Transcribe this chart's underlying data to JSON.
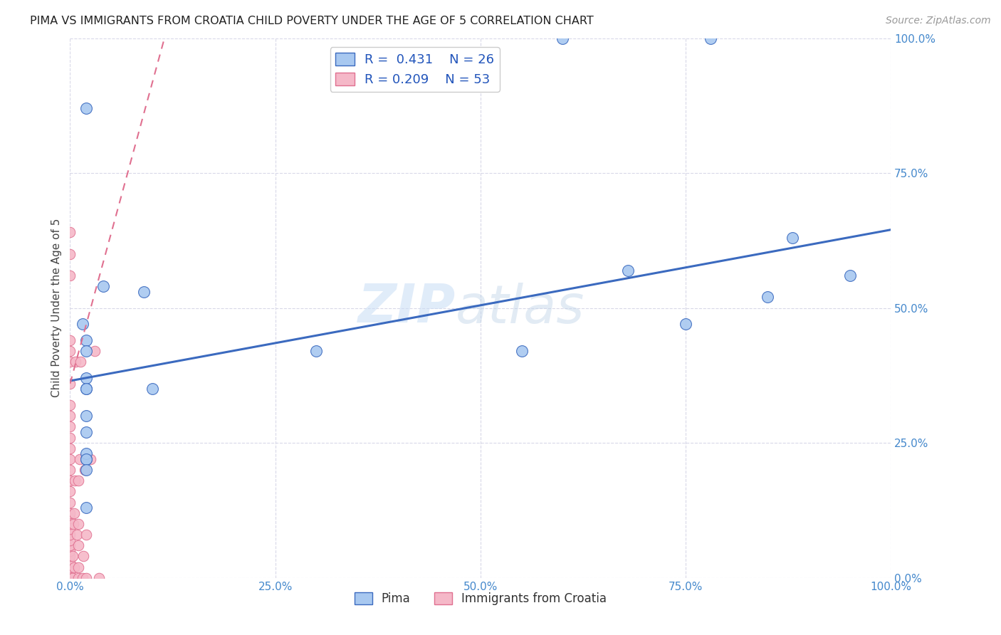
{
  "title": "PIMA VS IMMIGRANTS FROM CROATIA CHILD POVERTY UNDER THE AGE OF 5 CORRELATION CHART",
  "source": "Source: ZipAtlas.com",
  "ylabel": "Child Poverty Under the Age of 5",
  "xlim": [
    0,
    1.0
  ],
  "ylim": [
    0,
    1.0
  ],
  "pima_R": 0.431,
  "pima_N": 26,
  "croatia_R": 0.209,
  "croatia_N": 53,
  "pima_color": "#a8c8f0",
  "croatia_color": "#f5b8c8",
  "pima_line_color": "#3b6abf",
  "croatia_line_color": "#e07090",
  "watermark_zip": "ZIP",
  "watermark_atlas": "atlas",
  "pima_x": [
    0.02,
    0.02,
    0.04,
    0.015,
    0.02,
    0.09,
    0.55,
    0.02,
    0.1,
    0.78,
    0.6,
    0.95,
    0.75,
    0.88,
    0.85,
    0.68,
    0.3,
    0.02,
    0.02,
    0.02,
    0.02,
    0.02,
    0.02,
    0.02,
    0.02,
    0.02
  ],
  "pima_y": [
    0.87,
    0.44,
    0.54,
    0.47,
    0.42,
    0.53,
    0.42,
    0.35,
    0.35,
    1.0,
    1.0,
    0.56,
    0.47,
    0.63,
    0.52,
    0.57,
    0.42,
    0.3,
    0.27,
    0.22,
    0.23,
    0.22,
    0.37,
    0.35,
    0.2,
    0.13
  ],
  "croatia_x": [
    0.0,
    0.0,
    0.0,
    0.0,
    0.0,
    0.0,
    0.0,
    0.0,
    0.0,
    0.0,
    0.0,
    0.0,
    0.0,
    0.0,
    0.0,
    0.0,
    0.0,
    0.0,
    0.0,
    0.0,
    0.0,
    0.0,
    0.0,
    0.0,
    0.0,
    0.0,
    0.0,
    0.0,
    0.0,
    0.0,
    0.003,
    0.003,
    0.004,
    0.005,
    0.005,
    0.006,
    0.007,
    0.008,
    0.01,
    0.01,
    0.01,
    0.01,
    0.01,
    0.012,
    0.013,
    0.015,
    0.016,
    0.018,
    0.02,
    0.02,
    0.025,
    0.03,
    0.035
  ],
  "croatia_y": [
    0.0,
    0.01,
    0.02,
    0.03,
    0.04,
    0.05,
    0.06,
    0.07,
    0.08,
    0.09,
    0.1,
    0.11,
    0.12,
    0.14,
    0.16,
    0.18,
    0.2,
    0.22,
    0.24,
    0.26,
    0.28,
    0.3,
    0.32,
    0.36,
    0.4,
    0.42,
    0.44,
    0.56,
    0.6,
    0.64,
    0.0,
    0.04,
    0.1,
    0.02,
    0.12,
    0.18,
    0.4,
    0.08,
    0.0,
    0.02,
    0.06,
    0.1,
    0.18,
    0.22,
    0.4,
    0.0,
    0.04,
    0.2,
    0.0,
    0.08,
    0.22,
    0.42,
    0.0
  ],
  "pima_line_x0": 0.0,
  "pima_line_y0": 0.365,
  "pima_line_x1": 1.0,
  "pima_line_y1": 0.645,
  "croatia_line_x0": 0.0,
  "croatia_line_y0": 0.36,
  "croatia_line_x1": 0.115,
  "croatia_line_y1": 1.0,
  "background_color": "#ffffff",
  "grid_color": "#d8d8e8",
  "tick_color": "#4488cc",
  "title_fontsize": 11.5,
  "axis_label_fontsize": 11,
  "tick_fontsize": 11,
  "legend_fontsize": 13,
  "source_fontsize": 10
}
